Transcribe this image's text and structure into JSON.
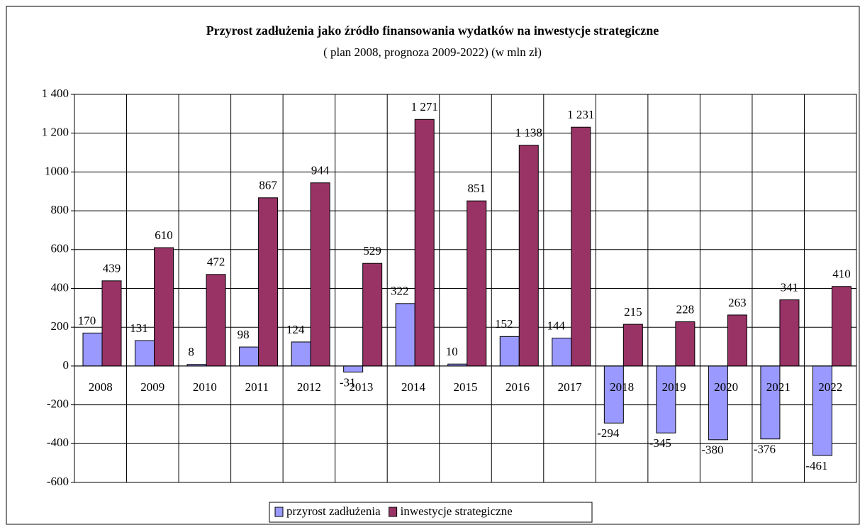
{
  "chart_data": {
    "type": "bar",
    "title": "Przyrost zadłużenia jako źródło finansowania wydatków na inwestycje strategiczne",
    "subtitle": "( plan 2008, prognoza 2009-2022) (w mln zł)",
    "categories": [
      "2008",
      "2009",
      "2010",
      "2011",
      "2012",
      "2013",
      "2014",
      "2015",
      "2016",
      "2017",
      "2018",
      "2019",
      "2020",
      "2021",
      "2022"
    ],
    "series": [
      {
        "name": "przyrost zadłużenia",
        "color": "#9999ff",
        "values": [
          170,
          131,
          8,
          98,
          124,
          -31,
          322,
          10,
          152,
          144,
          -294,
          -345,
          -380,
          -376,
          -461
        ]
      },
      {
        "name": "inwestycje strategiczne",
        "color": "#993366",
        "values": [
          439,
          610,
          472,
          867,
          944,
          529,
          1271,
          851,
          1138,
          1231,
          215,
          228,
          263,
          341,
          410
        ],
        "value_labels": [
          "439",
          "610",
          "472",
          "867",
          "944",
          "529",
          "1 271",
          "851",
          "1 138",
          "1 231",
          "215",
          "228",
          "263",
          "341",
          "410"
        ]
      }
    ],
    "ylim": [
      -600,
      1400
    ],
    "yticks": [
      -600,
      -400,
      -200,
      0,
      200,
      400,
      600,
      800,
      1000,
      {
        "value": 1200,
        "label": "1 200"
      },
      {
        "value": 1400,
        "label": "1 400"
      }
    ],
    "grid": true,
    "legend": "bottom"
  }
}
